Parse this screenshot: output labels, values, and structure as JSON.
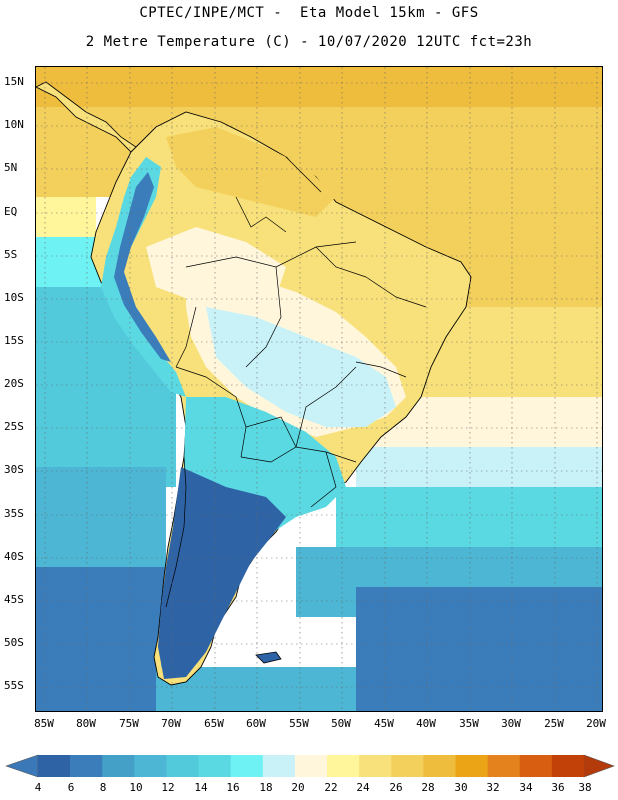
{
  "header": {
    "line1": "CPTEC/INPE/MCT -  Eta Model 15km - GFS",
    "line2": "2 Metre Temperature (C) - 10/07/2020 12UTC fct=23h"
  },
  "map": {
    "lat_labels": [
      "15N",
      "10N",
      "5N",
      "EQ",
      "5S",
      "10S",
      "15S",
      "20S",
      "25S",
      "30S",
      "35S",
      "40S",
      "45S",
      "50S",
      "55S"
    ],
    "lon_labels": [
      "85W",
      "80W",
      "75W",
      "70W",
      "65W",
      "60W",
      "55W",
      "50W",
      "45W",
      "40W",
      "35W",
      "30W",
      "25W",
      "20W"
    ],
    "grid": "dotted"
  },
  "colorbar": {
    "labels": [
      "4",
      "6",
      "8",
      "10",
      "12",
      "14",
      "16",
      "18",
      "20",
      "22",
      "24",
      "26",
      "28",
      "30",
      "32",
      "34",
      "36",
      "38"
    ],
    "colors": [
      "#2e63a6",
      "#3b7dba",
      "#45a0c8",
      "#4cb6d4",
      "#52cadc",
      "#5ad9e2",
      "#6ff2f4",
      "#c8f2f8",
      "#fff6dc",
      "#fff59a",
      "#f8e17a",
      "#f3cf5c",
      "#eebd3e",
      "#eba415",
      "#e4821e",
      "#d85f12",
      "#c14109"
    ],
    "low_arrow_color": "#3b78b8",
    "high_arrow_color": "#b33a0a"
  },
  "palette": {
    "ocean_warm": "#f3cf5c",
    "ocean_mild": "#fff59a",
    "ocean_cool": "#c8f2f8",
    "ocean_cold": "#52cadc",
    "ocean_colder": "#3b7dba",
    "land_warm": "#f8e17a",
    "land_hot": "#eebd3e",
    "land_mild": "#fff6dc",
    "andes": "#5ad9e2",
    "cold_south": "#2e63a6"
  }
}
